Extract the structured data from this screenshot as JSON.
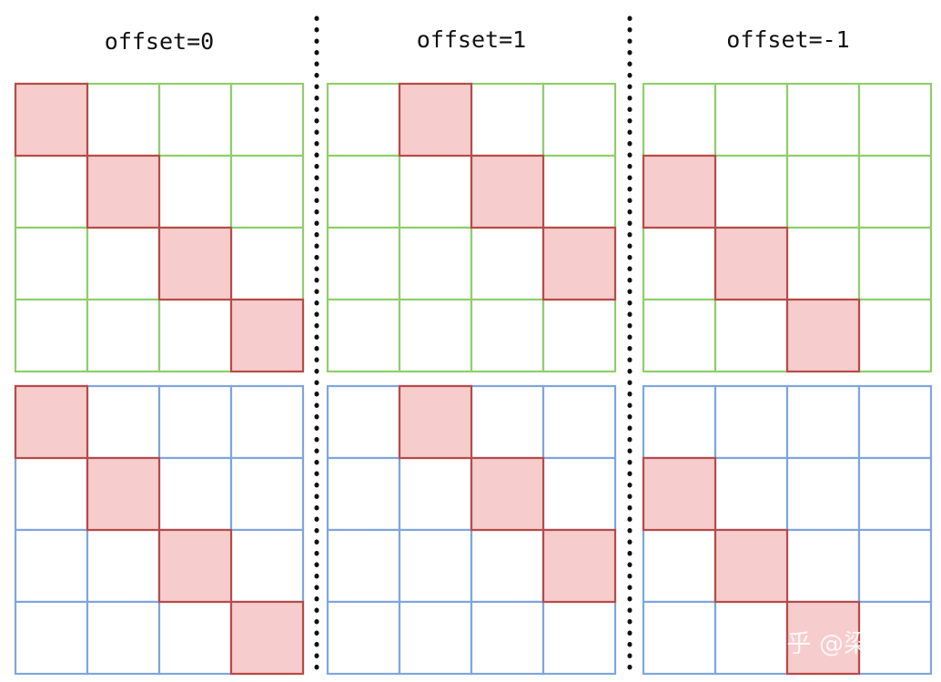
{
  "titles": [
    "offset=0",
    "offset=1",
    "offset=-1"
  ],
  "offsets": [
    0,
    1,
    -1
  ],
  "grid_size": 4,
  "grids": [
    {
      "name": "green-grid",
      "color": "#8fce6b"
    },
    {
      "name": "blue-grid",
      "color": "#7ea6dc"
    }
  ],
  "highlight": {
    "fill": "#f6cccc",
    "stroke": "#b84a4a"
  },
  "separator_color": "#111111",
  "watermark": "知乎 @梁德澎"
}
